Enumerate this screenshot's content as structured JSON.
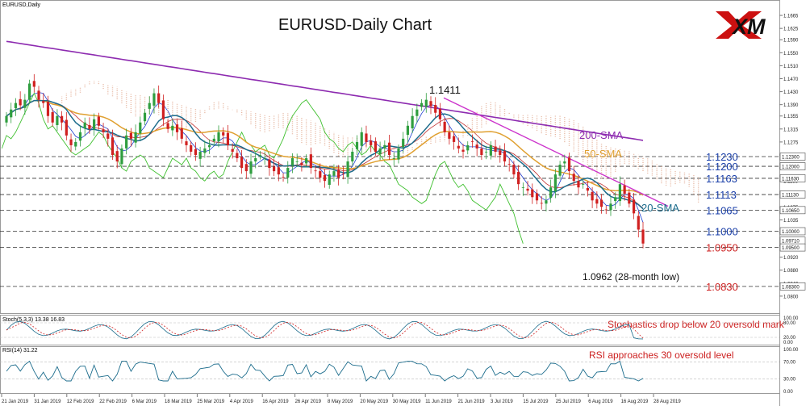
{
  "chart_data": [
    {
      "type": "candlestick",
      "symbol_label": "EURUSD,Daily",
      "title": "EURUSD-Daily Chart",
      "brand": "XM",
      "ylim": [
        1.0755,
        1.1705
      ],
      "y_ticks": [
        1.1665,
        1.1625,
        1.159,
        1.155,
        1.151,
        1.147,
        1.143,
        1.139,
        1.1355,
        1.1315,
        1.1275,
        1.1235,
        1.1195,
        1.1155,
        1.1115,
        1.1075,
        1.1035,
        1.0995,
        1.0955,
        1.092,
        1.088,
        1.084,
        1.08
      ],
      "x_ticks": [
        "21 Jan 2019",
        "31 Jan 2019",
        "12 Feb 2019",
        "22 Feb 2019",
        "6 Mar 2019",
        "18 Mar 2019",
        "25 Mar 2019",
        "4 Apr 2019",
        "16 Apr 2019",
        "26 Apr 2019",
        "8 May 2019",
        "20 May 2019",
        "30 May 2019",
        "11 Jun 2019",
        "21 Jun 2019",
        "3 Jul 2019",
        "15 Jul 2019",
        "25 Jul 2019",
        "6 Aug 2019",
        "16 Aug 2019",
        "28 Aug 2019"
      ],
      "closes": [
        1.1355,
        1.1375,
        1.1395,
        1.1388,
        1.1405,
        1.1455,
        1.1445,
        1.1405,
        1.1395,
        1.1355,
        1.1335,
        1.1355,
        1.1335,
        1.1295,
        1.1265,
        1.1275,
        1.1305,
        1.1335,
        1.1315,
        1.1345,
        1.1325,
        1.1305,
        1.1285,
        1.1235,
        1.1215,
        1.1255,
        1.1295,
        1.1285,
        1.1305,
        1.1335,
        1.1365,
        1.1395,
        1.1425,
        1.1395,
        1.1345,
        1.1315,
        1.1325,
        1.1305,
        1.1285,
        1.1265,
        1.1245,
        1.1235,
        1.1245,
        1.1255,
        1.1265,
        1.1285,
        1.1305,
        1.1295,
        1.1265,
        1.1245,
        1.1225,
        1.1195,
        1.1185,
        1.1215,
        1.1225,
        1.1235,
        1.1225,
        1.1195,
        1.1185,
        1.1175,
        1.1165,
        1.1195,
        1.1225,
        1.1215,
        1.1205,
        1.1225,
        1.1195,
        1.1185,
        1.1165,
        1.1155,
        1.1175,
        1.1185,
        1.1165,
        1.1175,
        1.1215,
        1.1245,
        1.1275,
        1.1305,
        1.1275,
        1.1265,
        1.1245,
        1.1255,
        1.1265,
        1.1235,
        1.1225,
        1.1255,
        1.1285,
        1.1325,
        1.1355,
        1.1375,
        1.1395,
        1.1405,
        1.1385,
        1.1365,
        1.1345,
        1.1305,
        1.1285,
        1.1275,
        1.1255,
        1.1245,
        1.1265,
        1.1275,
        1.1255,
        1.1235,
        1.1245,
        1.1265,
        1.1245,
        1.1235,
        1.1215,
        1.1205,
        1.1175,
        1.1145,
        1.1135,
        1.1125,
        1.1105,
        1.1095,
        1.1085,
        1.1095,
        1.1135,
        1.1175,
        1.1205,
        1.1215,
        1.1185,
        1.1155,
        1.1135,
        1.1145,
        1.1125,
        1.1095,
        1.1085,
        1.1075,
        1.1065,
        1.1085,
        1.1105,
        1.1145,
        1.1115,
        1.1085,
        1.1055,
        1.1005,
        1.0962
      ],
      "last_price": 1.0962,
      "annotations": [
        "1.1411",
        "200-SMA",
        "50-SMA",
        "20-SMA",
        "1.0962 (28-month low)"
      ],
      "levels": [
        {
          "label": "1.1230",
          "value": 1.123,
          "color": "#1a3fa8"
        },
        {
          "label": "1.1200",
          "value": 1.12,
          "color": "#1a3fa8"
        },
        {
          "label": "1.1163",
          "value": 1.1163,
          "color": "#1a3fa8"
        },
        {
          "label": "1.1113",
          "value": 1.1113,
          "color": "#1a3fa8"
        },
        {
          "label": "1.1065",
          "value": 1.1065,
          "color": "#1a3fa8"
        },
        {
          "label": "1.1000",
          "value": 1.1,
          "color": "#1a3fa8"
        },
        {
          "label": "1.0950",
          "value": 1.095,
          "color": "#cc1f1f"
        },
        {
          "label": "1.0830",
          "value": 1.083,
          "color": "#cc1f1f"
        }
      ],
      "axis_level_labels": [
        "1.12300",
        "1.12000",
        "1.11630",
        "1.11130",
        "1.10650",
        "1.10000",
        "1.09710",
        "1.09500",
        "1.08300"
      ],
      "grid": false
    },
    {
      "type": "line",
      "panel": "stochastics",
      "label": "Stoch(5,3,3) 13.38 16.83",
      "annotation": "Stochastics drop below 20 oversold mark",
      "ylim": [
        0,
        100
      ],
      "y_ticks": [
        100,
        80,
        20,
        0
      ]
    },
    {
      "type": "line",
      "panel": "rsi",
      "label": "RSI(14) 31.22",
      "annotation": "RSI approaches 30 oversold level",
      "ylim": [
        0,
        100
      ],
      "y_ticks": [
        100,
        70,
        30,
        0
      ]
    }
  ],
  "colors": {
    "bull": "#2f9e3f",
    "bear": "#d02020",
    "sma200": "#8d2bb0",
    "sma50": "#e0a030",
    "sma20": "#1c6c8c",
    "trendline": "#cc33cc",
    "tenkan": "#2040d0",
    "kijun": "#c03030",
    "chikou": "#40c030",
    "cloud": "#e6b6a0",
    "level_blue": "#1a3fa8",
    "level_red": "#cc1f1f"
  }
}
